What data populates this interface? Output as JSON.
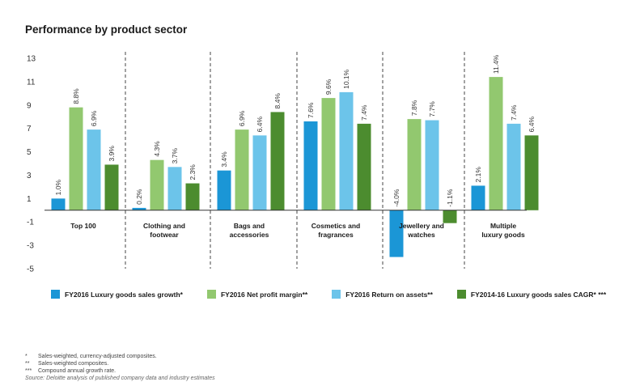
{
  "title": "Performance by product sector",
  "colors": {
    "s1": "#1b96d6",
    "s2": "#92c86f",
    "s3": "#6cc4ea",
    "s4": "#4c8c2f"
  },
  "chart_data": {
    "type": "bar",
    "title": "",
    "categories": [
      [
        "Top 100"
      ],
      [
        "Clothing and",
        "footwear"
      ],
      [
        "Bags and",
        "accessories"
      ],
      [
        "Cosmetics and",
        "fragrances"
      ],
      [
        "Jewellery and",
        "watches"
      ],
      [
        "Multiple",
        "luxury goods"
      ]
    ],
    "series": [
      {
        "name": "FY2016 Luxury goods sales growth*",
        "values": [
          1.0,
          0.2,
          3.4,
          7.6,
          -4.0,
          2.1
        ]
      },
      {
        "name": "FY2016 Net profit margin**",
        "values": [
          8.8,
          4.3,
          6.9,
          9.6,
          7.8,
          11.4
        ]
      },
      {
        "name": "FY2016 Return on assets**",
        "values": [
          6.9,
          3.7,
          6.4,
          10.1,
          7.7,
          7.4
        ]
      },
      {
        "name": "FY2014-16 Luxury goods sales CAGR* ***",
        "values": [
          3.9,
          2.3,
          8.4,
          7.4,
          -1.1,
          6.4
        ]
      }
    ],
    "data_labels": [
      [
        "1.0%",
        "0.2%",
        "3.4%",
        "7.6%",
        "-4.0%",
        "2.1%"
      ],
      [
        "8.8%",
        "4.3%",
        "6.9%",
        "9.6%",
        "7.8%",
        "11.4%"
      ],
      [
        "6.9%",
        "3.7%",
        "6.4%",
        "10.1%",
        "7.7%",
        "7.4%"
      ],
      [
        "3.9%",
        "2.3%",
        "8.4%",
        "7.4%",
        "-1.1%",
        "6.4%"
      ]
    ],
    "yticks": [
      "13",
      "11",
      "9",
      "7",
      "5",
      "3",
      "1",
      "-1",
      "-3",
      "-5"
    ],
    "ylim": [
      -5,
      13
    ],
    "baseline": 0,
    "grid": false,
    "legend": "bottom"
  },
  "notes": [
    {
      "mark": "*",
      "text": "Sales-weighted, currency-adjusted composites."
    },
    {
      "mark": "**",
      "text": "Sales-weighted composites."
    },
    {
      "mark": "***",
      "text": "Compound annual growth rate."
    }
  ],
  "source": "Source: Deloitte analysis of published company data and industry estimates"
}
